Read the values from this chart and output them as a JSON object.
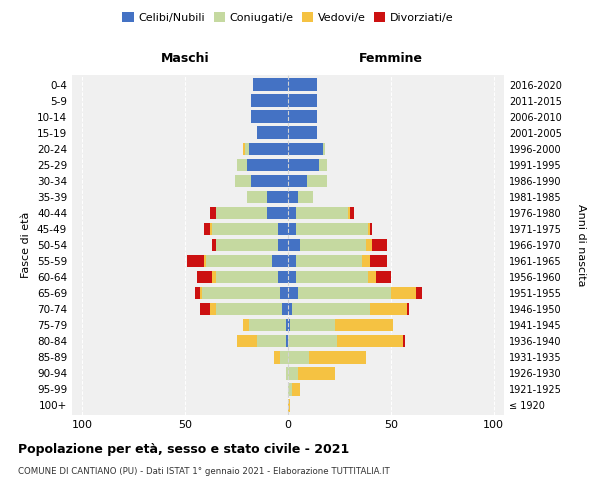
{
  "age_groups": [
    "100+",
    "95-99",
    "90-94",
    "85-89",
    "80-84",
    "75-79",
    "70-74",
    "65-69",
    "60-64",
    "55-59",
    "50-54",
    "45-49",
    "40-44",
    "35-39",
    "30-34",
    "25-29",
    "20-24",
    "15-19",
    "10-14",
    "5-9",
    "0-4"
  ],
  "birth_years": [
    "≤ 1920",
    "1921-1925",
    "1926-1930",
    "1931-1935",
    "1936-1940",
    "1941-1945",
    "1946-1950",
    "1951-1955",
    "1956-1960",
    "1961-1965",
    "1966-1970",
    "1971-1975",
    "1976-1980",
    "1981-1985",
    "1986-1990",
    "1991-1995",
    "1996-2000",
    "2001-2005",
    "2006-2010",
    "2011-2015",
    "2016-2020"
  ],
  "males": {
    "celibe": [
      0,
      0,
      0,
      0,
      1,
      1,
      3,
      4,
      5,
      8,
      5,
      5,
      10,
      10,
      18,
      20,
      19,
      15,
      18,
      18,
      17
    ],
    "coniugato": [
      0,
      0,
      1,
      4,
      14,
      18,
      32,
      38,
      30,
      32,
      30,
      32,
      25,
      10,
      8,
      5,
      2,
      0,
      0,
      0,
      0
    ],
    "vedovo": [
      0,
      0,
      0,
      3,
      10,
      3,
      3,
      1,
      2,
      1,
      0,
      1,
      0,
      0,
      0,
      0,
      1,
      0,
      0,
      0,
      0
    ],
    "divorziato": [
      0,
      0,
      0,
      0,
      0,
      0,
      5,
      2,
      7,
      8,
      2,
      3,
      3,
      0,
      0,
      0,
      0,
      0,
      0,
      0,
      0
    ]
  },
  "females": {
    "nubile": [
      0,
      0,
      0,
      0,
      0,
      1,
      2,
      5,
      4,
      4,
      6,
      4,
      4,
      5,
      9,
      15,
      17,
      14,
      14,
      14,
      14
    ],
    "coniugata": [
      0,
      2,
      5,
      10,
      24,
      22,
      38,
      45,
      35,
      32,
      32,
      35,
      25,
      7,
      10,
      4,
      1,
      0,
      0,
      0,
      0
    ],
    "vedova": [
      1,
      4,
      18,
      28,
      32,
      28,
      18,
      12,
      4,
      4,
      3,
      1,
      1,
      0,
      0,
      0,
      0,
      0,
      0,
      0,
      0
    ],
    "divorziata": [
      0,
      0,
      0,
      0,
      1,
      0,
      1,
      3,
      7,
      8,
      7,
      1,
      2,
      0,
      0,
      0,
      0,
      0,
      0,
      0,
      0
    ]
  },
  "colors": {
    "celibe_nubile": "#4472c4",
    "coniugato_a": "#c5d9a0",
    "vedovo_a": "#f5c242",
    "divorziato_a": "#cc1111"
  },
  "xlim": 105,
  "title": "Popolazione per età, sesso e stato civile - 2021",
  "subtitle": "COMUNE DI CANTIANO (PU) - Dati ISTAT 1° gennaio 2021 - Elaborazione TUTTITALIA.IT",
  "ylabel": "Fasce di età",
  "ylabel_right": "Anni di nascita",
  "label_maschi": "Maschi",
  "label_femmine": "Femmine",
  "bg_color": "#f0f0f0"
}
